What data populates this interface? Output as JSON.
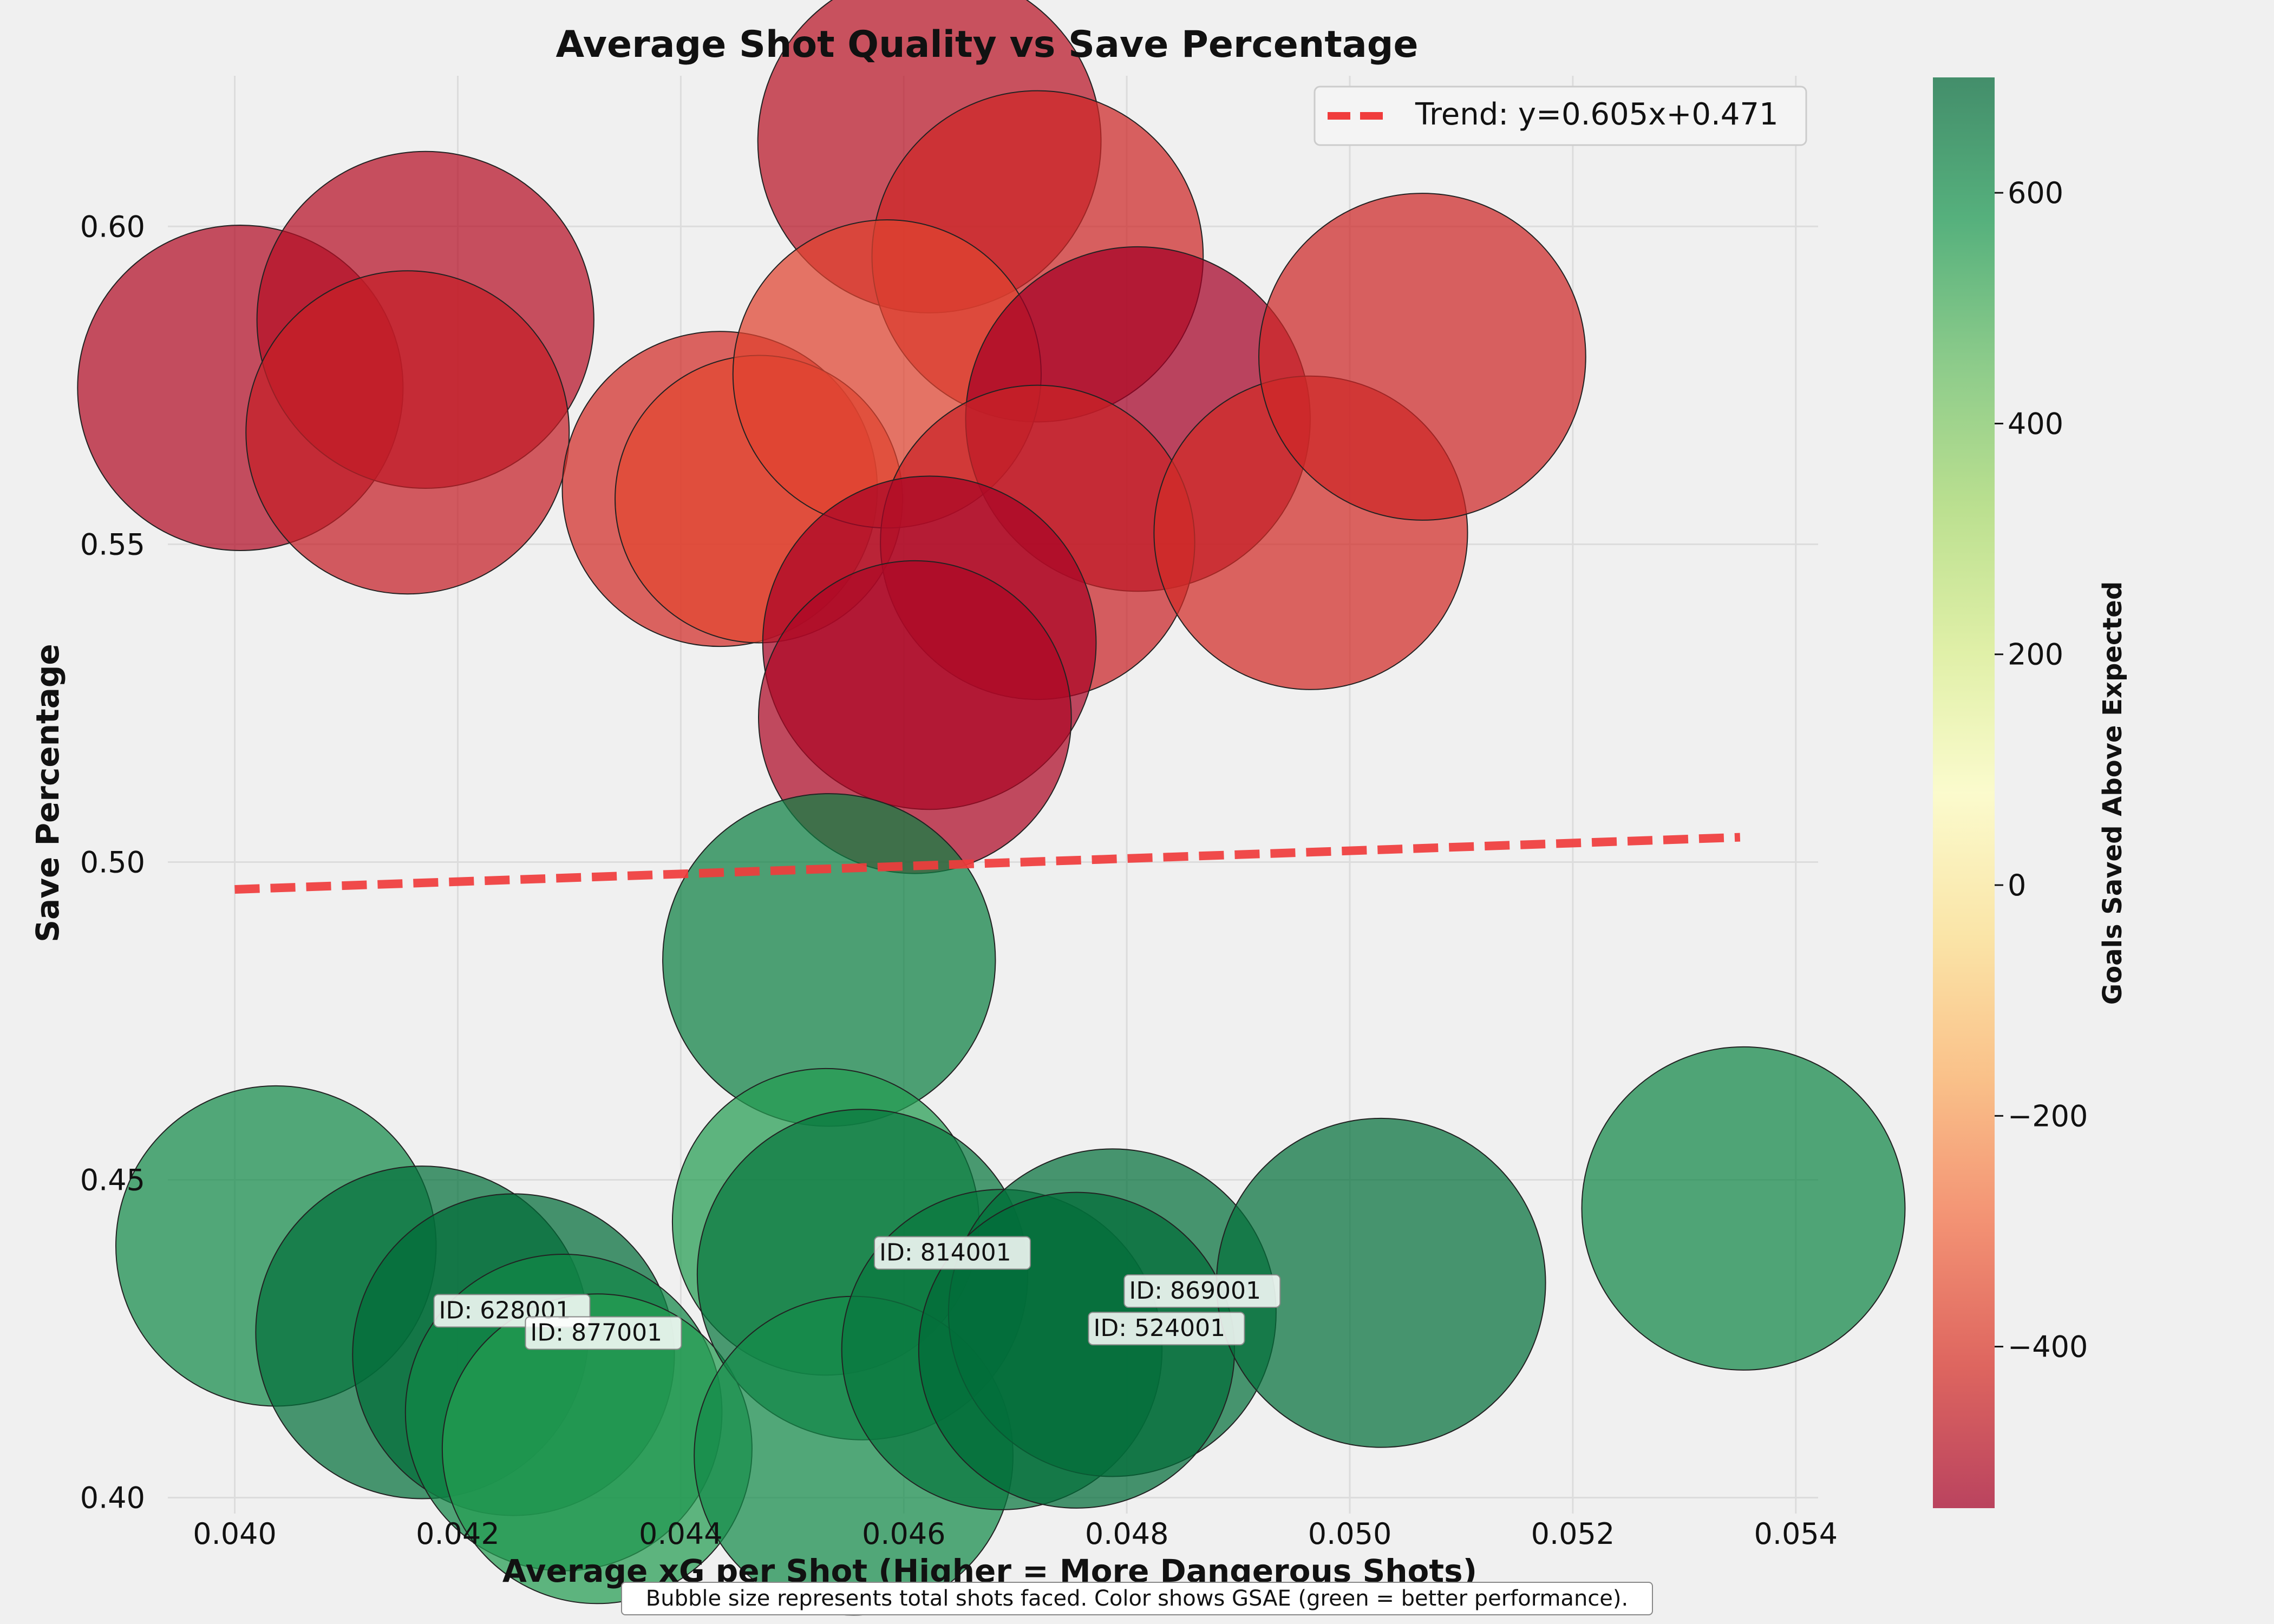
{
  "chart_data": {
    "type": "scatter",
    "title": "Average Shot Quality vs Save Percentage",
    "xlabel": "Average xG per Shot (Higher = More Dangerous Shots)",
    "ylabel": "Save Percentage",
    "xlim": [
      0.0394,
      0.0542
    ],
    "ylim": [
      0.3975,
      0.6237
    ],
    "x_ticks": [
      "0.040",
      "0.042",
      "0.044",
      "0.046",
      "0.048",
      "0.050",
      "0.052",
      "0.054"
    ],
    "y_ticks": [
      "0.40",
      "0.45",
      "0.50",
      "0.55",
      "0.60"
    ],
    "grid": true,
    "legend": {
      "position": "top-right",
      "entries": [
        {
          "label": "Trend: y=0.605x+0.471",
          "color": "#f03c3c",
          "style": "dashed"
        }
      ]
    },
    "trend": {
      "x": [
        0.04,
        0.0535
      ],
      "y": [
        0.4957,
        0.5039
      ]
    },
    "colorbar": {
      "label": "Goals Saved Above Expected",
      "range": [
        -540,
        700
      ],
      "ticks": [
        "600",
        "400",
        "200",
        "0",
        "−200",
        "−400"
      ],
      "colors": [
        "#a50026",
        "#d73027",
        "#f46d43",
        "#fdae61",
        "#fee08b",
        "#ffffbf",
        "#d9ef8b",
        "#a6d96a",
        "#66bd63",
        "#1a9850",
        "#006837"
      ]
    },
    "size_note": "Bubble size represents total shots faced.",
    "points": [
      {
        "x": 0.04005,
        "y": 0.5746,
        "gsae": -510,
        "shots": 1115
      },
      {
        "x": 0.04171,
        "y": 0.5853,
        "gsae": -500,
        "shots": 1195
      },
      {
        "x": 0.04155,
        "y": 0.5676,
        "gsae": -460,
        "shots": 1100
      },
      {
        "x": 0.04435,
        "y": 0.5587,
        "gsae": -430,
        "shots": 1045
      },
      {
        "x": 0.0447,
        "y": 0.5571,
        "gsae": -370,
        "shots": 870
      },
      {
        "x": 0.04623,
        "y": 0.6134,
        "gsae": -490,
        "shots": 1240
      },
      {
        "x": 0.0472,
        "y": 0.5953,
        "gsae": -440,
        "shots": 1155
      },
      {
        "x": 0.04585,
        "y": 0.5768,
        "gsae": -380,
        "shots": 1000
      },
      {
        "x": 0.0481,
        "y": 0.5697,
        "gsae": -540,
        "shots": 1250
      },
      {
        "x": 0.0472,
        "y": 0.5503,
        "gsae": -450,
        "shots": 1040
      },
      {
        "x": 0.04623,
        "y": 0.5345,
        "gsae": -530,
        "shots": 1170
      },
      {
        "x": 0.0461,
        "y": 0.5228,
        "gsae": -520,
        "shots": 1030
      },
      {
        "x": 0.04965,
        "y": 0.5518,
        "gsae": -430,
        "shots": 1035
      },
      {
        "x": 0.05065,
        "y": 0.5795,
        "gsae": -440,
        "shots": 1125
      },
      {
        "x": 0.04533,
        "y": 0.4846,
        "gsae": 640,
        "shots": 1165
      },
      {
        "x": 0.04037,
        "y": 0.4396,
        "gsae": 610,
        "shots": 1080
      },
      {
        "x": 0.04168,
        "y": 0.426,
        "gsae": 680,
        "shots": 1165,
        "label": "ID: 628001"
      },
      {
        "x": 0.0425,
        "y": 0.4225,
        "gsae": 690,
        "shots": 1090,
        "label": "ID: 877001"
      },
      {
        "x": 0.04295,
        "y": 0.4134,
        "gsae": 620,
        "shots": 1055
      },
      {
        "x": 0.04325,
        "y": 0.4077,
        "gsae": 560,
        "shots": 1010
      },
      {
        "x": 0.0453,
        "y": 0.4434,
        "gsae": 560,
        "shots": 990
      },
      {
        "x": 0.04563,
        "y": 0.4351,
        "gsae": 660,
        "shots": 1150,
        "label": "ID: 814001"
      },
      {
        "x": 0.04555,
        "y": 0.4066,
        "gsae": 610,
        "shots": 1070
      },
      {
        "x": 0.04688,
        "y": 0.4233,
        "gsae": 660,
        "shots": 1080
      },
      {
        "x": 0.04787,
        "y": 0.4291,
        "gsae": 680,
        "shots": 1130,
        "label": "ID: 869001"
      },
      {
        "x": 0.04755,
        "y": 0.4232,
        "gsae": 690,
        "shots": 1050,
        "label": "ID: 524001"
      },
      {
        "x": 0.05028,
        "y": 0.4338,
        "gsae": 680,
        "shots": 1140
      },
      {
        "x": 0.05353,
        "y": 0.4455,
        "gsae": 620,
        "shots": 1100
      }
    ]
  },
  "footer": {
    "caption": "Bubble size represents total shots faced. Color shows GSAE (green = better performance)."
  }
}
